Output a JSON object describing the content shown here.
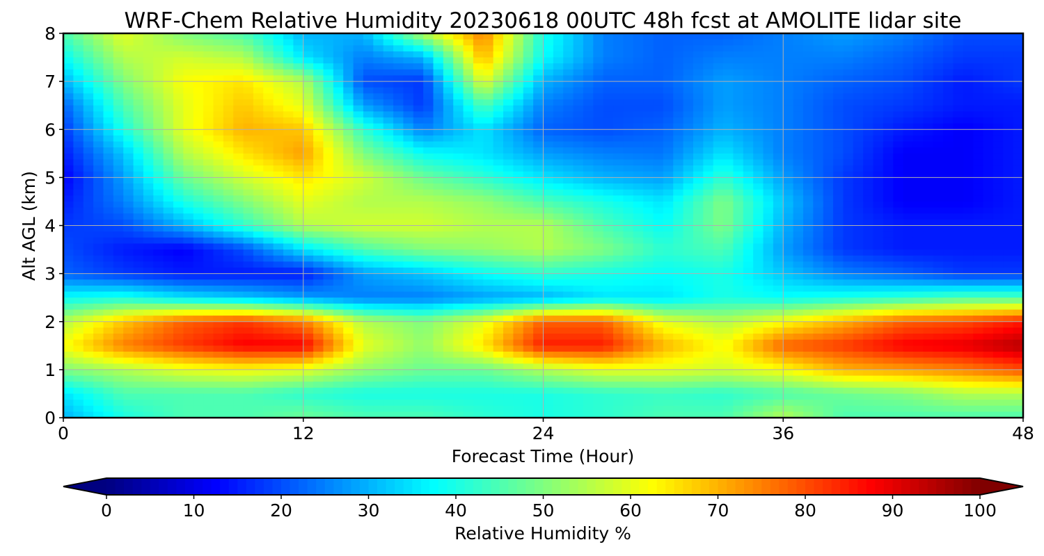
{
  "chart_data": {
    "type": "heatmap",
    "title": "WRF-Chem Relative Humidity 20230618 00UTC 48h fcst at AMOLITE lidar site",
    "xlabel": "Forecast Time (Hour)",
    "ylabel": "Alt AGL (km)",
    "x_ticks": [
      "0",
      "12",
      "24",
      "36",
      "48"
    ],
    "y_ticks": [
      "0",
      "1",
      "2",
      "3",
      "4",
      "5",
      "6",
      "7",
      "8"
    ],
    "xlim": [
      0,
      48
    ],
    "ylim": [
      0,
      8
    ],
    "grid": true,
    "colormap": "jet",
    "colorbar": {
      "label": "Relative Humidity %",
      "ticks": [
        "0",
        "10",
        "20",
        "30",
        "40",
        "50",
        "60",
        "70",
        "80",
        "90",
        "100"
      ],
      "range": [
        0,
        100
      ],
      "extend": "both",
      "orientation": "horizontal"
    },
    "x": [
      0,
      3,
      6,
      9,
      12,
      15,
      18,
      21,
      24,
      27,
      30,
      33,
      36,
      39,
      42,
      45,
      48
    ],
    "y": [
      0,
      0.5,
      1,
      1.5,
      2,
      2.5,
      3,
      3.5,
      4,
      4.5,
      5,
      5.5,
      6,
      6.5,
      7,
      7.5,
      8
    ],
    "z": [
      [
        30,
        40,
        45,
        45,
        48,
        45,
        45,
        42,
        40,
        42,
        45,
        45,
        55,
        45,
        45,
        45,
        45
      ],
      [
        35,
        45,
        45,
        45,
        42,
        40,
        40,
        40,
        40,
        42,
        43,
        42,
        45,
        48,
        50,
        55,
        55
      ],
      [
        50,
        55,
        60,
        62,
        60,
        52,
        48,
        48,
        55,
        60,
        60,
        58,
        62,
        70,
        72,
        75,
        80
      ],
      [
        62,
        75,
        82,
        88,
        88,
        60,
        52,
        65,
        85,
        85,
        70,
        62,
        78,
        82,
        88,
        90,
        95
      ],
      [
        55,
        68,
        78,
        82,
        75,
        55,
        50,
        60,
        78,
        78,
        60,
        55,
        62,
        70,
        78,
        80,
        85
      ],
      [
        38,
        40,
        35,
        32,
        28,
        25,
        25,
        28,
        30,
        35,
        35,
        40,
        38,
        40,
        42,
        45,
        45
      ],
      [
        22,
        18,
        15,
        15,
        15,
        28,
        32,
        38,
        42,
        40,
        38,
        40,
        32,
        25,
        22,
        18,
        18
      ],
      [
        20,
        15,
        12,
        20,
        35,
        45,
        50,
        52,
        55,
        50,
        42,
        45,
        28,
        18,
        15,
        15,
        15
      ],
      [
        18,
        20,
        30,
        42,
        55,
        58,
        58,
        55,
        55,
        45,
        38,
        50,
        30,
        18,
        15,
        15,
        15
      ],
      [
        15,
        25,
        40,
        50,
        60,
        55,
        55,
        52,
        45,
        40,
        35,
        50,
        32,
        18,
        12,
        12,
        15
      ],
      [
        12,
        28,
        48,
        58,
        65,
        58,
        48,
        42,
        35,
        30,
        28,
        42,
        28,
        18,
        12,
        12,
        15
      ],
      [
        15,
        32,
        55,
        65,
        72,
        50,
        38,
        35,
        28,
        25,
        24,
        35,
        25,
        20,
        12,
        12,
        15
      ],
      [
        18,
        40,
        60,
        70,
        68,
        42,
        25,
        35,
        22,
        20,
        22,
        30,
        25,
        20,
        15,
        12,
        15
      ],
      [
        22,
        45,
        60,
        68,
        60,
        28,
        18,
        45,
        25,
        20,
        20,
        28,
        25,
        20,
        18,
        15,
        15
      ],
      [
        30,
        50,
        62,
        65,
        55,
        20,
        18,
        60,
        30,
        22,
        22,
        28,
        25,
        22,
        20,
        15,
        18
      ],
      [
        38,
        55,
        58,
        55,
        35,
        25,
        30,
        70,
        38,
        25,
        22,
        25,
        25,
        25,
        22,
        18,
        18
      ],
      [
        45,
        60,
        50,
        45,
        30,
        30,
        55,
        75,
        40,
        25,
        22,
        22,
        25,
        28,
        25,
        20,
        20
      ]
    ]
  }
}
